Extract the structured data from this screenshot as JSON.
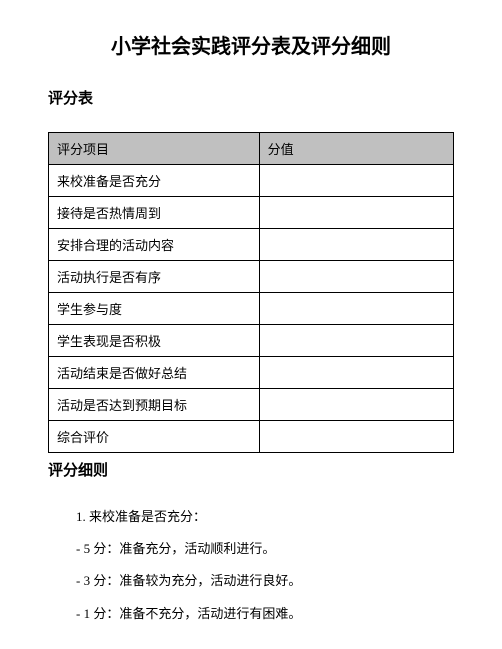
{
  "title": "小学社会实践评分表及评分细则",
  "section1_title": "评分表",
  "section2_title": "评分细则",
  "table": {
    "header_item": "评分项目",
    "header_score": "分值",
    "rows": [
      {
        "item": "来校准备是否充分",
        "score": ""
      },
      {
        "item": "接待是否热情周到",
        "score": ""
      },
      {
        "item": "安排合理的活动内容",
        "score": ""
      },
      {
        "item": "活动执行是否有序",
        "score": ""
      },
      {
        "item": "学生参与度",
        "score": ""
      },
      {
        "item": "学生表现是否积极",
        "score": ""
      },
      {
        "item": "活动结束是否做好总结",
        "score": ""
      },
      {
        "item": "活动是否达到预期目标",
        "score": ""
      },
      {
        "item": "综合评价",
        "score": ""
      }
    ]
  },
  "details": {
    "item1_title": "1. 来校准备是否充分：",
    "item1_5": "- 5 分：准备充分，活动顺利进行。",
    "item1_3": "- 3 分：准备较为充分，活动进行良好。",
    "item1_1": "- 1 分：准备不充分，活动进行有困难。"
  },
  "styling": {
    "background_color": "#ffffff",
    "text_color": "#000000",
    "header_bg": "#c0c0c0",
    "border_color": "#000000",
    "title_fontsize": 20,
    "section_fontsize": 15,
    "body_fontsize": 13
  }
}
